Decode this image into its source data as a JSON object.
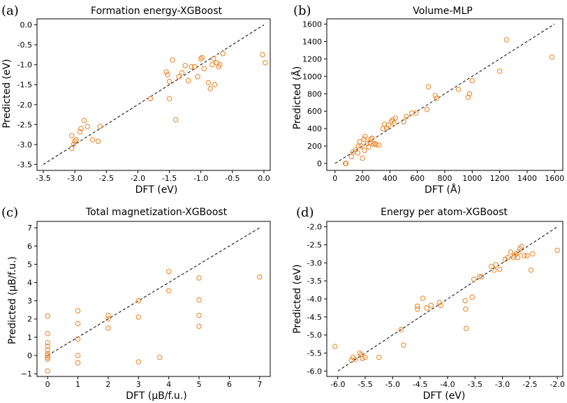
{
  "marker_color": "#ED8A2E",
  "reference_line_color": "#000000",
  "chart_data": [
    {
      "id": "a",
      "type": "scatter",
      "panel_label": "(a)",
      "title": "Formation energy-XGBoost",
      "xlabel": "DFT (eV)",
      "ylabel": "Predicted (eV)",
      "xlim": [
        -3.6,
        0.1
      ],
      "ylim": [
        -3.65,
        0.15
      ],
      "xticks": [
        -3.5,
        -3.0,
        -2.5,
        -2.0,
        -1.5,
        -1.0,
        -0.5,
        0.0
      ],
      "xtick_labels": [
        "-3.5",
        "-3.0",
        "-2.5",
        "-2.0",
        "-1.5",
        "-1.0",
        "-0.5",
        "0.0"
      ],
      "yticks": [
        -3.5,
        -3.0,
        -2.5,
        -2.0,
        -1.5,
        -1.0,
        -0.5,
        0.0
      ],
      "ytick_labels": [
        "-3.5",
        "-3.0",
        "-2.5",
        "-2.0",
        "-1.5",
        "-1.0",
        "-0.5",
        "0.0"
      ],
      "reference_line": [
        [
          -3.5,
          -3.5
        ],
        [
          0.0,
          0.0
        ]
      ],
      "points": [
        [
          -3.05,
          -3.1
        ],
        [
          -3.02,
          -3.0
        ],
        [
          -3.0,
          -2.92
        ],
        [
          -2.98,
          -2.88
        ],
        [
          -3.05,
          -2.78
        ],
        [
          -2.92,
          -2.68
        ],
        [
          -2.9,
          -2.6
        ],
        [
          -2.85,
          -2.4
        ],
        [
          -2.8,
          -2.55
        ],
        [
          -2.72,
          -2.88
        ],
        [
          -2.63,
          -2.92
        ],
        [
          -2.6,
          -2.55
        ],
        [
          -1.8,
          -1.85
        ],
        [
          -1.55,
          -1.18
        ],
        [
          -1.53,
          -1.25
        ],
        [
          -1.5,
          -1.42
        ],
        [
          -1.5,
          -1.85
        ],
        [
          -1.45,
          -0.88
        ],
        [
          -1.4,
          -2.38
        ],
        [
          -1.35,
          -1.3
        ],
        [
          -1.3,
          -1.2
        ],
        [
          -1.25,
          -1.02
        ],
        [
          -1.2,
          -1.4
        ],
        [
          -1.15,
          -1.05
        ],
        [
          -1.1,
          -1.05
        ],
        [
          -1.05,
          -1.3
        ],
        [
          -1.0,
          -0.85
        ],
        [
          -0.98,
          -0.82
        ],
        [
          -0.95,
          -1.1
        ],
        [
          -0.88,
          -1.45
        ],
        [
          -0.85,
          -1.6
        ],
        [
          -0.82,
          -1.0
        ],
        [
          -0.8,
          -0.85
        ],
        [
          -0.78,
          -1.5
        ],
        [
          -0.75,
          -0.95
        ],
        [
          -0.72,
          -1.05
        ],
        [
          -0.7,
          -1.0
        ],
        [
          -0.65,
          -0.72
        ],
        [
          -0.02,
          -0.75
        ],
        [
          0.02,
          -0.95
        ]
      ]
    },
    {
      "id": "b",
      "type": "scatter",
      "panel_label": "(b)",
      "title": "Volume-MLP",
      "xlabel": "DFT (Å)",
      "ylabel": "Predicted (Å)",
      "xlim": [
        -60,
        1660
      ],
      "ylim": [
        -80,
        1660
      ],
      "xticks": [
        0,
        200,
        400,
        600,
        800,
        1000,
        1200,
        1400,
        1600
      ],
      "xtick_labels": [
        "0",
        "200",
        "400",
        "600",
        "800",
        "1000",
        "1200",
        "1400",
        "1600"
      ],
      "yticks": [
        0,
        200,
        400,
        600,
        800,
        1000,
        1200,
        1400,
        1600
      ],
      "ytick_labels": [
        "0",
        "200",
        "400",
        "600",
        "800",
        "1000",
        "1200",
        "1400",
        "1600"
      ],
      "reference_line": [
        [
          0,
          0
        ],
        [
          1600,
          1600
        ]
      ],
      "points": [
        [
          75,
          0
        ],
        [
          80,
          0
        ],
        [
          120,
          80
        ],
        [
          130,
          130
        ],
        [
          150,
          160
        ],
        [
          165,
          120
        ],
        [
          170,
          200
        ],
        [
          180,
          250
        ],
        [
          190,
          200
        ],
        [
          200,
          60
        ],
        [
          210,
          280
        ],
        [
          215,
          150
        ],
        [
          220,
          310
        ],
        [
          235,
          230
        ],
        [
          245,
          190
        ],
        [
          255,
          240
        ],
        [
          260,
          280
        ],
        [
          270,
          290
        ],
        [
          280,
          220
        ],
        [
          290,
          230
        ],
        [
          300,
          215
        ],
        [
          320,
          210
        ],
        [
          350,
          400
        ],
        [
          360,
          450
        ],
        [
          375,
          410
        ],
        [
          390,
          440
        ],
        [
          410,
          480
        ],
        [
          420,
          500
        ],
        [
          430,
          460
        ],
        [
          440,
          520
        ],
        [
          500,
          480
        ],
        [
          520,
          540
        ],
        [
          560,
          580
        ],
        [
          590,
          580
        ],
        [
          670,
          620
        ],
        [
          680,
          880
        ],
        [
          730,
          780
        ],
        [
          740,
          750
        ],
        [
          900,
          850
        ],
        [
          970,
          760
        ],
        [
          980,
          800
        ],
        [
          1000,
          950
        ],
        [
          1200,
          1060
        ],
        [
          1250,
          1420
        ],
        [
          1580,
          1220
        ]
      ]
    },
    {
      "id": "c",
      "type": "scatter",
      "panel_label": "(c)",
      "title": "Total magnetization-XGBoost",
      "xlabel": "DFT (μB/f.u.)",
      "ylabel": "Predicted (μB/f.u.)",
      "xlim": [
        -0.35,
        7.35
      ],
      "ylim": [
        -1.15,
        7.35
      ],
      "xticks": [
        0,
        1,
        2,
        3,
        4,
        5,
        6,
        7
      ],
      "xtick_labels": [
        "0",
        "1",
        "2",
        "3",
        "4",
        "5",
        "6",
        "7"
      ],
      "yticks": [
        -1,
        0,
        1,
        2,
        3,
        4,
        5,
        6,
        7
      ],
      "ytick_labels": [
        "−1",
        "0",
        "1",
        "2",
        "3",
        "4",
        "5",
        "6",
        "7"
      ],
      "reference_line": [
        [
          0,
          0
        ],
        [
          7,
          7
        ]
      ],
      "points": [
        [
          0,
          2.15
        ],
        [
          0,
          1.2
        ],
        [
          0,
          0.7
        ],
        [
          0,
          0.5
        ],
        [
          0,
          0.3
        ],
        [
          0,
          0.1
        ],
        [
          0,
          0.0
        ],
        [
          0,
          -0.1
        ],
        [
          0,
          -0.2
        ],
        [
          0,
          -0.85
        ],
        [
          1,
          2.45
        ],
        [
          1,
          1.75
        ],
        [
          1,
          0.9
        ],
        [
          1,
          0.0
        ],
        [
          1,
          -0.4
        ],
        [
          2,
          2.2
        ],
        [
          2,
          2.0
        ],
        [
          2,
          1.5
        ],
        [
          3,
          3.0
        ],
        [
          3,
          2.1
        ],
        [
          3,
          -0.35
        ],
        [
          3.7,
          -0.1
        ],
        [
          4,
          4.6
        ],
        [
          4,
          3.55
        ],
        [
          5,
          4.25
        ],
        [
          5,
          3.05
        ],
        [
          5,
          2.2
        ],
        [
          5,
          1.6
        ],
        [
          7,
          4.3
        ]
      ]
    },
    {
      "id": "d",
      "type": "scatter",
      "panel_label": "(d)",
      "title": "Energy per atom-XGBoost",
      "xlabel": "DFT (eV)",
      "ylabel": "Predicted (eV)",
      "xlim": [
        -6.2,
        -1.9
      ],
      "ylim": [
        -6.15,
        -1.85
      ],
      "xticks": [
        -6.0,
        -5.5,
        -5.0,
        -4.5,
        -4.0,
        -3.5,
        -3.0,
        -2.5,
        -2.0
      ],
      "xtick_labels": [
        "-6.0",
        "-5.5",
        "-5.0",
        "-4.5",
        "-4.0",
        "-3.5",
        "-3.0",
        "-2.5",
        "-2.0"
      ],
      "yticks": [
        -6.0,
        -5.5,
        -5.0,
        -4.5,
        -4.0,
        -3.5,
        -3.0,
        -2.5,
        -2.0
      ],
      "ytick_labels": [
        "-6.0",
        "-5.5",
        "-5.0",
        "-4.5",
        "-4.0",
        "-3.5",
        "-3.0",
        "-2.5",
        "-2.0"
      ],
      "reference_line": [
        [
          -6.0,
          -6.0
        ],
        [
          -2.0,
          -2.0
        ]
      ],
      "points": [
        [
          -6.05,
          -5.32
        ],
        [
          -5.75,
          -5.7
        ],
        [
          -5.72,
          -5.62
        ],
        [
          -5.68,
          -5.68
        ],
        [
          -5.6,
          -5.5
        ],
        [
          -5.58,
          -5.55
        ],
        [
          -5.55,
          -5.65
        ],
        [
          -5.5,
          -5.62
        ],
        [
          -5.25,
          -5.62
        ],
        [
          -4.85,
          -4.85
        ],
        [
          -4.8,
          -5.28
        ],
        [
          -4.55,
          -4.2
        ],
        [
          -4.55,
          -4.28
        ],
        [
          -4.45,
          -3.98
        ],
        [
          -4.38,
          -4.25
        ],
        [
          -4.3,
          -4.18
        ],
        [
          -4.15,
          -4.1
        ],
        [
          -4.12,
          -4.18
        ],
        [
          -3.68,
          -4.05
        ],
        [
          -3.67,
          -4.28
        ],
        [
          -3.66,
          -4.82
        ],
        [
          -3.55,
          -3.95
        ],
        [
          -3.52,
          -3.45
        ],
        [
          -3.42,
          -3.38
        ],
        [
          -3.38,
          -3.38
        ],
        [
          -3.2,
          -3.1
        ],
        [
          -3.15,
          -3.2
        ],
        [
          -3.12,
          -3.05
        ],
        [
          -3.05,
          -3.18
        ],
        [
          -2.95,
          -2.9
        ],
        [
          -2.9,
          -2.85
        ],
        [
          -2.85,
          -2.7
        ],
        [
          -2.8,
          -2.85
        ],
        [
          -2.78,
          -2.8
        ],
        [
          -2.75,
          -2.75
        ],
        [
          -2.72,
          -2.85
        ],
        [
          -2.7,
          -2.7
        ],
        [
          -2.68,
          -2.6
        ],
        [
          -2.65,
          -2.55
        ],
        [
          -2.6,
          -2.8
        ],
        [
          -2.55,
          -2.8
        ],
        [
          -2.48,
          -3.2
        ],
        [
          -2.45,
          -2.75
        ],
        [
          -2.0,
          -2.65
        ]
      ]
    }
  ]
}
